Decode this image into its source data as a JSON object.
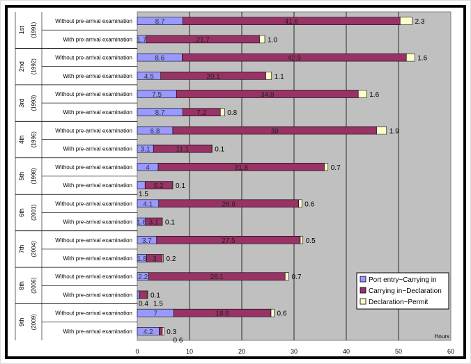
{
  "chart_data": {
    "type": "bar",
    "orientation": "horizontal",
    "stacked": true,
    "xlabel": "Hours",
    "xlim": [
      0,
      60
    ],
    "xticks": [
      0,
      10,
      20,
      30,
      40,
      50,
      60
    ],
    "grid": true,
    "legend_position": "bottom-right",
    "groups": [
      {
        "label": "1st",
        "year": "(1991)"
      },
      {
        "label": "2nd",
        "year": "(1992)"
      },
      {
        "label": "3rd",
        "year": "(1993)"
      },
      {
        "label": "4th",
        "year": "(1996)"
      },
      {
        "label": "5th",
        "year": "(1998)"
      },
      {
        "label": "6th",
        "year": "(2001)"
      },
      {
        "label": "7th",
        "year": "(2004)"
      },
      {
        "label": "8th",
        "year": "(2006)"
      },
      {
        "label": "9th",
        "year": "(2009)"
      }
    ],
    "subcategories": [
      "Without pre-arrival examination",
      "With pre-arrival examination"
    ],
    "series": [
      {
        "name": "Port entry~Carrying in",
        "color": "#9999ff",
        "values": [
          8.7,
          1.7,
          8.6,
          4.5,
          7.5,
          8.7,
          6.8,
          3.1,
          4,
          1.5,
          4.1,
          1.6,
          3.7,
          1.8,
          2.2,
          0.4,
          7,
          4.2
        ]
      },
      {
        "name": "Carrying in~Declaration",
        "color": "#993366",
        "values": [
          41.6,
          21.7,
          42.9,
          20.1,
          34.8,
          7.2,
          39,
          11.1,
          31.8,
          5.2,
          26.8,
          3.1,
          27.5,
          3,
          26.1,
          1.5,
          18.6,
          0.6
        ]
      },
      {
        "name": "Declaration~Permit",
        "color": "#ffffcc",
        "values": [
          2.3,
          1.0,
          1.6,
          1.1,
          1.6,
          0.8,
          1.9,
          0.1,
          0.7,
          0.1,
          0.6,
          0.1,
          0.5,
          0.2,
          0.7,
          0.1,
          0.6,
          0.3
        ]
      }
    ],
    "value_labels": [
      [
        "8.7",
        "41.6",
        "2.3"
      ],
      [
        "1.7",
        "21.7",
        "1.0"
      ],
      [
        "8.6",
        "42.9",
        "1.6"
      ],
      [
        "4.5",
        "20.1",
        "1.1"
      ],
      [
        "7.5",
        "34.8",
        "1.6"
      ],
      [
        "8.7",
        "7.2",
        "0.8"
      ],
      [
        "6.8",
        "39",
        "1.9"
      ],
      [
        "3.1",
        "11.1",
        "0.1"
      ],
      [
        "4",
        "31.8",
        "0.7"
      ],
      [
        "1.5",
        "5.2",
        "0.1"
      ],
      [
        "4.1",
        "26.8",
        "0.6"
      ],
      [
        "1.6",
        "3.1",
        "0.1"
      ],
      [
        "3.7",
        "27.5",
        "0.5"
      ],
      [
        "1.8",
        "3",
        "0.2"
      ],
      [
        "2.2",
        "26.1",
        "0.7"
      ],
      [
        "0.4",
        "1.5",
        "0.1"
      ],
      [
        "7",
        "18.6",
        "0.6"
      ],
      [
        "4.2",
        "0.6",
        "0.3"
      ]
    ]
  }
}
